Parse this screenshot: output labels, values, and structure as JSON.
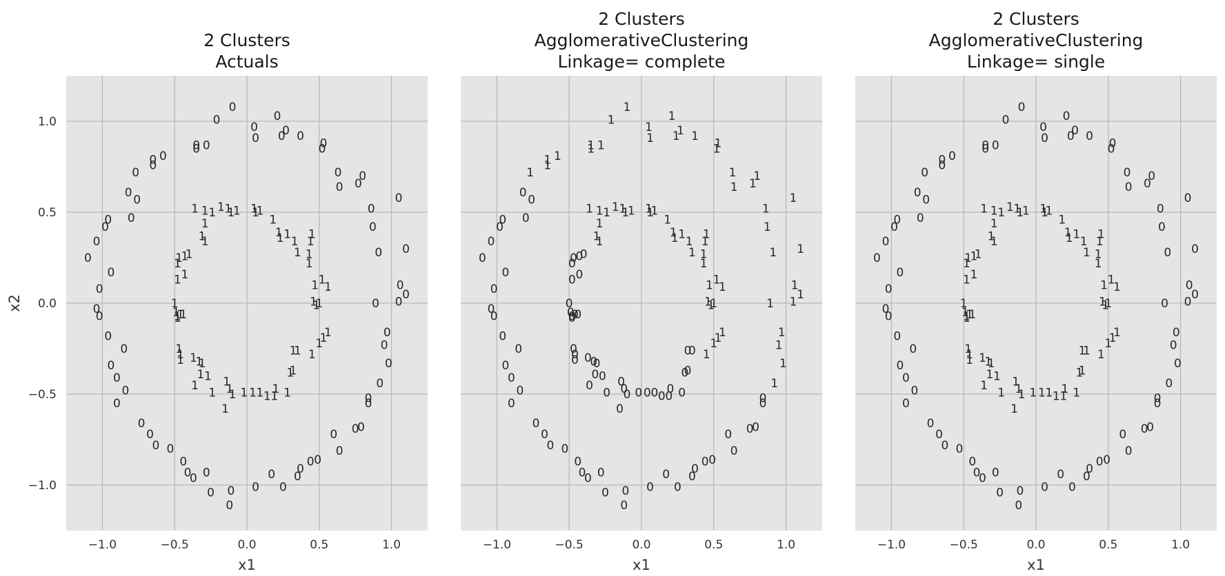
{
  "chart_data": [
    {
      "type": "scatter",
      "title": [
        "2 Clusters",
        "Actuals"
      ],
      "xlabel": "x1",
      "ylabel": "x2",
      "xlim": [
        -1.25,
        1.25
      ],
      "ylim": [
        -1.25,
        1.25
      ],
      "xticks": [
        "−1.0",
        "−0.5",
        "0.0",
        "0.5",
        "1.0"
      ],
      "yticks": [
        "−1.0",
        "−0.5",
        "0.0",
        "0.5",
        "1.0"
      ],
      "grid": true,
      "marker": "cluster label text",
      "series_source": "actual"
    },
    {
      "type": "scatter",
      "title": [
        "2 Clusters",
        "AgglomerativeClustering",
        "Linkage= complete"
      ],
      "xlabel": "x1",
      "ylabel": "",
      "xlim": [
        -1.25,
        1.25
      ],
      "ylim": [
        -1.25,
        1.25
      ],
      "xticks": [
        "−1.0",
        "−0.5",
        "0.0",
        "0.5",
        "1.0"
      ],
      "yticks": [],
      "grid": true,
      "marker": "cluster label text",
      "series_source": "complete"
    },
    {
      "type": "scatter",
      "title": [
        "2 Clusters",
        "AgglomerativeClustering",
        "Linkage= single"
      ],
      "xlabel": "x1",
      "ylabel": "",
      "xlim": [
        -1.25,
        1.25
      ],
      "ylim": [
        -1.25,
        1.25
      ],
      "xticks": [
        "−1.0",
        "−0.5",
        "0.0",
        "0.5",
        "1.0"
      ],
      "yticks": [],
      "grid": true,
      "marker": "cluster label text",
      "series_source": "actual"
    }
  ],
  "points": [
    [
      -0.1,
      1.08,
      0,
      1
    ],
    [
      0.05,
      0.97,
      0,
      1
    ],
    [
      0.06,
      0.91,
      0,
      1
    ],
    [
      0.21,
      1.03,
      0,
      1
    ],
    [
      0.27,
      0.95,
      0,
      1
    ],
    [
      0.24,
      0.92,
      0,
      1
    ],
    [
      0.37,
      0.92,
      0,
      1
    ],
    [
      -0.21,
      1.01,
      0,
      1
    ],
    [
      -0.35,
      0.87,
      0,
      1
    ],
    [
      -0.35,
      0.85,
      0,
      1
    ],
    [
      -0.28,
      0.87,
      0,
      1
    ],
    [
      -0.58,
      0.81,
      0,
      1
    ],
    [
      -0.65,
      0.79,
      0,
      1
    ],
    [
      -0.65,
      0.76,
      0,
      1
    ],
    [
      -0.77,
      0.72,
      0,
      1
    ],
    [
      -0.82,
      0.61,
      0,
      1
    ],
    [
      -0.76,
      0.57,
      0,
      1
    ],
    [
      -0.8,
      0.47,
      0,
      1
    ],
    [
      -0.96,
      0.46,
      0,
      1
    ],
    [
      -0.98,
      0.42,
      0,
      1
    ],
    [
      -1.04,
      0.34,
      0,
      1
    ],
    [
      -1.1,
      0.25,
      0,
      1
    ],
    [
      -0.94,
      0.17,
      0,
      1
    ],
    [
      -1.02,
      0.08,
      0,
      1
    ],
    [
      -1.04,
      -0.03,
      0,
      1
    ],
    [
      -1.02,
      -0.07,
      0,
      1
    ],
    [
      -0.96,
      -0.18,
      0,
      1
    ],
    [
      -0.85,
      -0.25,
      0,
      1
    ],
    [
      -0.94,
      -0.34,
      0,
      1
    ],
    [
      -0.9,
      -0.41,
      0,
      1
    ],
    [
      -0.84,
      -0.48,
      0,
      1
    ],
    [
      -0.9,
      -0.55,
      0,
      1
    ],
    [
      -0.73,
      -0.66,
      0,
      1
    ],
    [
      -0.67,
      -0.72,
      0,
      1
    ],
    [
      -0.63,
      -0.78,
      0,
      1
    ],
    [
      -0.53,
      -0.8,
      0,
      1
    ],
    [
      -0.44,
      -0.87,
      0,
      1
    ],
    [
      -0.41,
      -0.93,
      0,
      1
    ],
    [
      -0.37,
      -0.96,
      0,
      1
    ],
    [
      -0.28,
      -0.93,
      0,
      1
    ],
    [
      -0.25,
      -1.04,
      0,
      1
    ],
    [
      -0.11,
      -1.03,
      0,
      1
    ],
    [
      -0.12,
      -1.11,
      0,
      1
    ],
    [
      0.06,
      -1.01,
      0,
      1
    ],
    [
      0.17,
      -0.94,
      0,
      1
    ],
    [
      0.25,
      -1.01,
      0,
      1
    ],
    [
      0.35,
      -0.95,
      0,
      1
    ],
    [
      0.37,
      -0.91,
      0,
      1
    ],
    [
      0.44,
      -0.87,
      0,
      1
    ],
    [
      0.49,
      -0.86,
      0,
      1
    ],
    [
      0.6,
      -0.72,
      0,
      1
    ],
    [
      0.64,
      -0.81,
      0,
      1
    ],
    [
      0.75,
      -0.69,
      0,
      1
    ],
    [
      0.79,
      -0.68,
      0,
      1
    ],
    [
      0.84,
      -0.55,
      0,
      1
    ],
    [
      0.84,
      -0.52,
      0,
      1
    ],
    [
      0.92,
      -0.44,
      0,
      1
    ],
    [
      0.98,
      -0.33,
      0,
      1
    ],
    [
      0.95,
      -0.23,
      0,
      1
    ],
    [
      0.97,
      -0.16,
      0,
      1
    ],
    [
      0.89,
      0.0,
      0,
      1
    ],
    [
      1.06,
      0.1,
      0,
      1
    ],
    [
      1.1,
      0.05,
      0,
      1
    ],
    [
      1.05,
      0.01,
      0,
      1
    ],
    [
      0.91,
      0.28,
      0,
      1
    ],
    [
      1.1,
      0.3,
      0,
      1
    ],
    [
      0.87,
      0.42,
      0,
      1
    ],
    [
      0.86,
      0.52,
      0,
      1
    ],
    [
      1.05,
      0.58,
      0,
      1
    ],
    [
      0.8,
      0.7,
      0,
      1
    ],
    [
      0.77,
      0.66,
      0,
      1
    ],
    [
      0.63,
      0.72,
      0,
      1
    ],
    [
      0.64,
      0.64,
      0,
      1
    ],
    [
      0.53,
      0.88,
      0,
      1
    ],
    [
      0.52,
      0.85,
      0,
      1
    ],
    [
      -0.36,
      0.52,
      1,
      1
    ],
    [
      -0.29,
      0.51,
      1,
      1
    ],
    [
      -0.24,
      0.5,
      1,
      1
    ],
    [
      -0.18,
      0.53,
      1,
      1
    ],
    [
      -0.13,
      0.52,
      1,
      1
    ],
    [
      -0.11,
      0.5,
      1,
      1
    ],
    [
      -0.07,
      0.51,
      1,
      1
    ],
    [
      0.05,
      0.52,
      1,
      1
    ],
    [
      0.06,
      0.5,
      1,
      1
    ],
    [
      0.09,
      0.51,
      1,
      1
    ],
    [
      0.18,
      0.46,
      1,
      1
    ],
    [
      -0.29,
      0.44,
      1,
      1
    ],
    [
      -0.31,
      0.37,
      1,
      1
    ],
    [
      -0.29,
      0.34,
      1,
      1
    ],
    [
      0.22,
      0.39,
      1,
      1
    ],
    [
      0.23,
      0.36,
      1,
      1
    ],
    [
      0.28,
      0.38,
      1,
      1
    ],
    [
      0.33,
      0.34,
      1,
      1
    ],
    [
      0.35,
      0.28,
      1,
      1
    ],
    [
      0.45,
      0.38,
      1,
      1
    ],
    [
      0.44,
      0.34,
      1,
      1
    ],
    [
      0.43,
      0.27,
      1,
      1
    ],
    [
      0.43,
      0.22,
      1,
      1
    ],
    [
      -0.48,
      0.22,
      1,
      1
    ],
    [
      -0.47,
      0.25,
      1,
      1
    ],
    [
      -0.43,
      0.26,
      1,
      1
    ],
    [
      -0.4,
      0.27,
      1,
      1
    ],
    [
      -0.48,
      0.13,
      1,
      1
    ],
    [
      -0.43,
      0.16,
      1,
      1
    ],
    [
      0.47,
      0.1,
      1,
      1
    ],
    [
      0.52,
      0.13,
      1,
      1
    ],
    [
      0.56,
      0.09,
      1,
      1
    ],
    [
      0.46,
      0.01,
      1,
      1
    ],
    [
      0.48,
      -0.01,
      1,
      1
    ],
    [
      0.5,
      0.0,
      1,
      1
    ],
    [
      -0.5,
      0.0,
      1,
      1
    ],
    [
      -0.49,
      -0.05,
      1,
      1
    ],
    [
      -0.48,
      -0.07,
      1,
      1
    ],
    [
      -0.46,
      -0.06,
      1,
      1
    ],
    [
      -0.44,
      -0.06,
      1,
      1
    ],
    [
      -0.48,
      -0.08,
      1,
      1
    ],
    [
      -0.47,
      -0.25,
      1,
      1
    ],
    [
      -0.46,
      -0.28,
      1,
      1
    ],
    [
      -0.46,
      -0.31,
      1,
      1
    ],
    [
      -0.37,
      -0.3,
      1,
      1
    ],
    [
      -0.33,
      -0.32,
      1,
      1
    ],
    [
      -0.31,
      -0.33,
      1,
      1
    ],
    [
      -0.32,
      -0.39,
      1,
      1
    ],
    [
      -0.27,
      -0.4,
      1,
      1
    ],
    [
      -0.36,
      -0.45,
      1,
      1
    ],
    [
      -0.24,
      -0.49,
      1,
      1
    ],
    [
      -0.14,
      -0.43,
      1,
      1
    ],
    [
      -0.12,
      -0.47,
      1,
      1
    ],
    [
      -0.1,
      -0.5,
      1,
      1
    ],
    [
      -0.15,
      -0.58,
      1,
      1
    ],
    [
      -0.02,
      -0.49,
      1,
      1
    ],
    [
      0.04,
      -0.49,
      1,
      1
    ],
    [
      0.09,
      -0.49,
      1,
      1
    ],
    [
      0.14,
      -0.51,
      1,
      1
    ],
    [
      0.19,
      -0.51,
      1,
      1
    ],
    [
      0.2,
      -0.47,
      1,
      1
    ],
    [
      0.28,
      -0.49,
      1,
      1
    ],
    [
      0.3,
      -0.38,
      1,
      1
    ],
    [
      0.32,
      -0.37,
      1,
      1
    ],
    [
      0.32,
      -0.26,
      1,
      1
    ],
    [
      0.35,
      -0.26,
      1,
      1
    ],
    [
      0.45,
      -0.28,
      1,
      1
    ],
    [
      0.5,
      -0.22,
      1,
      1
    ],
    [
      0.53,
      -0.19,
      1,
      1
    ],
    [
      0.56,
      -0.16,
      1,
      1
    ]
  ],
  "complete_overrides": [
    [
      -0.1,
      1.08,
      1
    ],
    [
      0.05,
      0.97,
      1
    ],
    [
      0.06,
      0.91,
      1
    ],
    [
      0.21,
      1.03,
      1
    ],
    [
      0.27,
      0.95,
      1
    ],
    [
      0.24,
      0.92,
      1
    ],
    [
      0.37,
      0.92,
      1
    ],
    [
      -0.21,
      1.01,
      1
    ],
    [
      -0.35,
      0.87,
      1
    ],
    [
      -0.35,
      0.85,
      1
    ],
    [
      -0.28,
      0.87,
      1
    ],
    [
      -0.58,
      0.81,
      1
    ],
    [
      -0.65,
      0.79,
      1
    ],
    [
      -0.65,
      0.76,
      1
    ],
    [
      -0.77,
      0.72,
      1
    ],
    [
      -0.47,
      0.25,
      0
    ],
    [
      -0.43,
      0.26,
      0
    ],
    [
      -0.4,
      0.27,
      0
    ],
    [
      -0.48,
      0.22,
      0
    ],
    [
      -0.48,
      0.13,
      0
    ],
    [
      -0.43,
      0.16,
      0
    ],
    [
      -0.5,
      0.0,
      0
    ],
    [
      -0.49,
      -0.05,
      0
    ],
    [
      -0.48,
      -0.07,
      0
    ],
    [
      -0.46,
      -0.06,
      0
    ],
    [
      -0.44,
      -0.06,
      0
    ],
    [
      -0.48,
      -0.08,
      0
    ],
    [
      -0.47,
      -0.25,
      0
    ],
    [
      -0.46,
      -0.28,
      0
    ],
    [
      -0.46,
      -0.31,
      0
    ],
    [
      -0.37,
      -0.3,
      0
    ],
    [
      -0.33,
      -0.32,
      0
    ],
    [
      -0.31,
      -0.33,
      0
    ],
    [
      -0.32,
      -0.39,
      0
    ],
    [
      -0.27,
      -0.4,
      0
    ],
    [
      -0.36,
      -0.45,
      0
    ],
    [
      -0.24,
      -0.49,
      0
    ],
    [
      -0.14,
      -0.43,
      0
    ],
    [
      -0.12,
      -0.47,
      0
    ],
    [
      -0.1,
      -0.5,
      0
    ],
    [
      -0.15,
      -0.58,
      0
    ],
    [
      -0.02,
      -0.49,
      0
    ],
    [
      0.04,
      -0.49,
      0
    ],
    [
      0.09,
      -0.49,
      0
    ],
    [
      0.14,
      -0.51,
      0
    ],
    [
      0.19,
      -0.51,
      0
    ],
    [
      0.2,
      -0.47,
      0
    ],
    [
      0.28,
      -0.49,
      0
    ],
    [
      0.3,
      -0.38,
      0
    ],
    [
      0.32,
      -0.37,
      0
    ],
    [
      0.32,
      -0.26,
      0
    ],
    [
      0.35,
      -0.26,
      0
    ],
    [
      0.98,
      -0.33,
      1
    ],
    [
      0.95,
      -0.23,
      1
    ],
    [
      0.97,
      -0.16,
      1
    ],
    [
      0.89,
      0.0,
      1
    ],
    [
      1.06,
      0.1,
      1
    ],
    [
      1.1,
      0.05,
      1
    ],
    [
      1.05,
      0.01,
      1
    ],
    [
      0.91,
      0.28,
      1
    ],
    [
      1.1,
      0.3,
      1
    ],
    [
      0.87,
      0.42,
      1
    ],
    [
      0.86,
      0.52,
      1
    ],
    [
      1.05,
      0.58,
      1
    ],
    [
      0.8,
      0.7,
      1
    ],
    [
      0.77,
      0.66,
      1
    ],
    [
      0.63,
      0.72,
      1
    ],
    [
      0.64,
      0.64,
      1
    ],
    [
      0.53,
      0.88,
      1
    ],
    [
      0.52,
      0.85,
      1
    ],
    [
      0.92,
      -0.44,
      1
    ]
  ],
  "colors": {
    "panel_background": "#e5e5e5",
    "grid": "#b8b8b8",
    "text": "#262626"
  }
}
